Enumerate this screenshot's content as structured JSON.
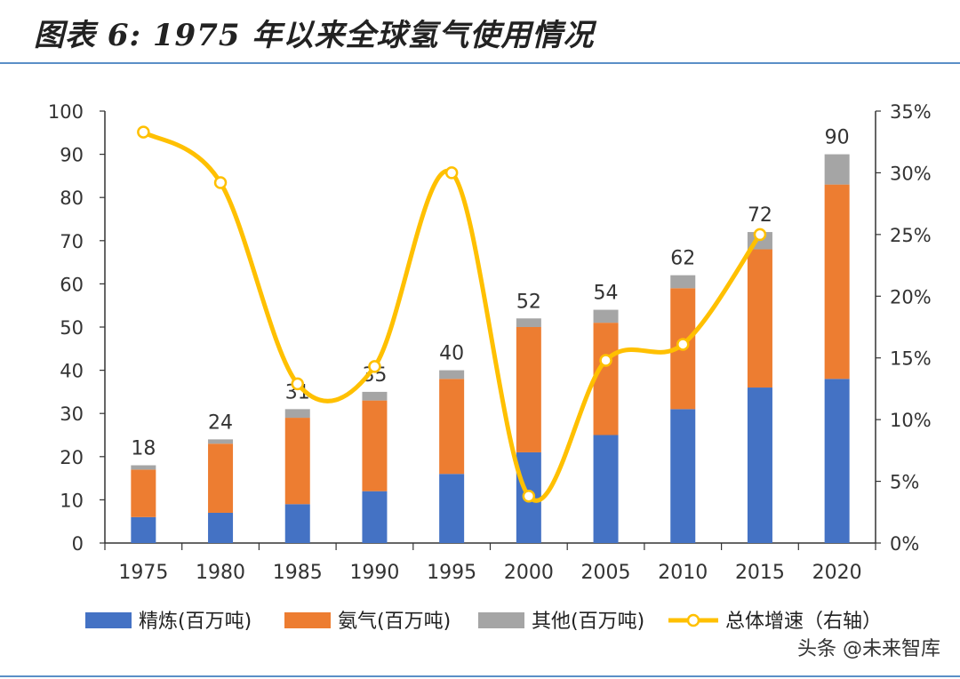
{
  "title": "图表 6: 1975 年以来全球氢气使用情况",
  "watermark": "头条 @未来智库",
  "chart_data": {
    "type": "bar",
    "stacked": true,
    "categories": [
      "1975",
      "1980",
      "1985",
      "1990",
      "1995",
      "2000",
      "2005",
      "2010",
      "2015",
      "2020"
    ],
    "series": [
      {
        "name": "精炼(百万吨)",
        "color": "#4472c4",
        "values": [
          6,
          7,
          9,
          12,
          16,
          21,
          25,
          31,
          36,
          38
        ]
      },
      {
        "name": "氨气(百万吨)",
        "color": "#ed7d31",
        "values": [
          11,
          16,
          20,
          21,
          22,
          29,
          26,
          28,
          32,
          45
        ]
      },
      {
        "name": "其他(百万吨)",
        "color": "#a5a5a5",
        "values": [
          1,
          1,
          2,
          2,
          2,
          2,
          3,
          3,
          4,
          7
        ]
      }
    ],
    "totals": [
      18,
      24,
      31,
      35,
      40,
      52,
      54,
      62,
      72,
      90
    ],
    "line": {
      "name": "总体增速（右轴）",
      "color": "#ffc000",
      "values": [
        33.3,
        29.2,
        12.9,
        14.3,
        30.0,
        3.8,
        14.8,
        16.1,
        25.0,
        null
      ]
    },
    "y_left": {
      "min": 0,
      "max": 100,
      "ticks": [
        "0",
        "10",
        "20",
        "30",
        "40",
        "50",
        "60",
        "70",
        "80",
        "90",
        "100"
      ]
    },
    "y_right": {
      "min": 0,
      "max": 35,
      "ticks": [
        "0%",
        "5%",
        "10%",
        "15%",
        "20%",
        "25%",
        "30%",
        "35%"
      ]
    }
  }
}
